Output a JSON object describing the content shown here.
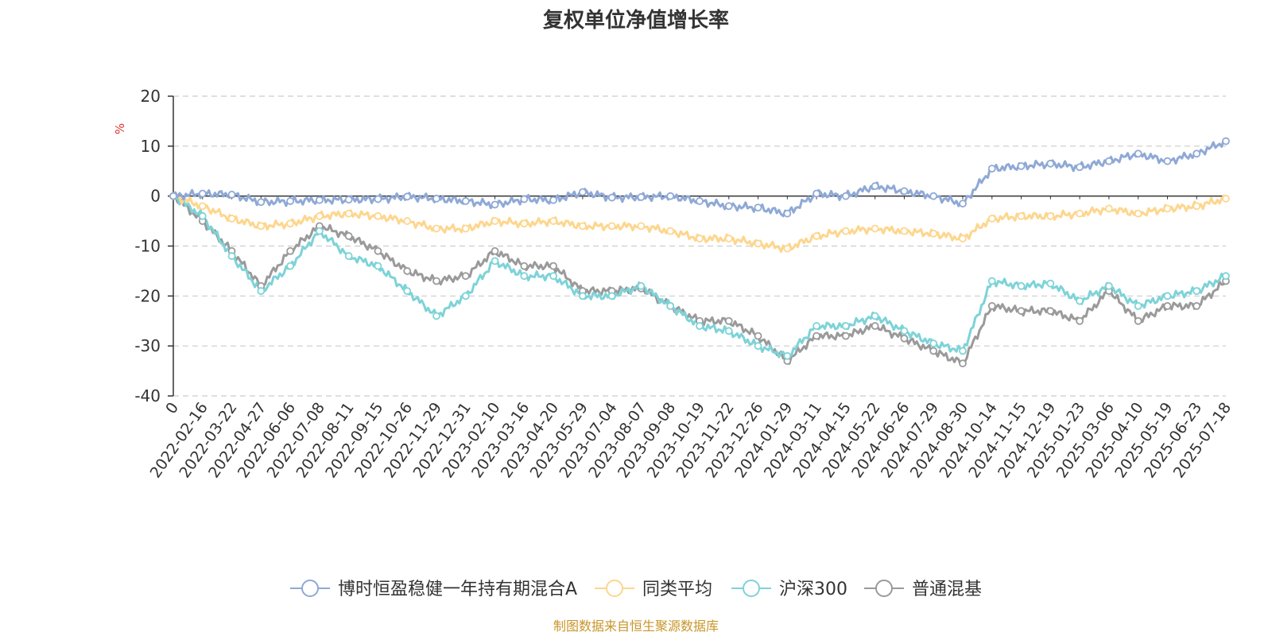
{
  "title": "复权单位净值增长率",
  "source_note": "制图数据来自恒生聚源数据库",
  "colors": {
    "series": [
      "#8fa9d6",
      "#fdd68e",
      "#7dd3d8",
      "#9a9a9a"
    ],
    "grid": "#cccccc",
    "axis": "#333333",
    "unit": "#e03030",
    "source": "#c8962a"
  },
  "chart_data": {
    "type": "line",
    "title": "复权单位净值增长率",
    "ylabel": "%",
    "ylim": [
      -40,
      20
    ],
    "yticks": [
      20,
      10,
      0,
      -10,
      -20,
      -30,
      -40
    ],
    "grid": "horizontal dashed",
    "legend_position": "bottom",
    "x_tick_labels": [
      "0",
      "2022-02-16",
      "2022-03-22",
      "2022-04-27",
      "2022-06-06",
      "2022-07-08",
      "2022-08-11",
      "2022-09-15",
      "2022-10-26",
      "2022-11-29",
      "2022-12-31",
      "2023-02-10",
      "2023-03-16",
      "2023-04-20",
      "2023-05-29",
      "2023-07-04",
      "2023-08-07",
      "2023-09-08",
      "2023-10-19",
      "2023-11-22",
      "2023-12-26",
      "2024-01-29",
      "2024-03-11",
      "2024-04-15",
      "2024-05-22",
      "2024-06-26",
      "2024-07-29",
      "2024-08-30",
      "2024-10-14",
      "2024-11-15",
      "2024-12-19",
      "2025-01-23",
      "2025-03-06",
      "2025-04-10",
      "2025-05-19",
      "2025-06-23",
      "2025-07-18"
    ],
    "series": [
      {
        "name": "博时恒盈稳健一年持有期混合A",
        "values": [
          0,
          0.5,
          0.3,
          -1.2,
          -1.0,
          -0.8,
          -0.7,
          -0.6,
          -0.1,
          -0.5,
          -1.0,
          -1.7,
          -0.6,
          -0.8,
          0.8,
          -0.3,
          -0.2,
          0,
          -1.0,
          -2.0,
          -2.3,
          -3.5,
          0.5,
          0,
          2.0,
          1.0,
          0,
          -1.5,
          5.5,
          6.0,
          6.5,
          5.8,
          7.0,
          8.5,
          7.0,
          8.5,
          11.0
        ]
      },
      {
        "name": "同类平均",
        "values": [
          0,
          -2.0,
          -4.5,
          -6.0,
          -5.5,
          -4.0,
          -3.5,
          -4.0,
          -5.0,
          -6.5,
          -6.5,
          -5.0,
          -5.5,
          -5.0,
          -6.0,
          -6.0,
          -6.0,
          -7.0,
          -8.5,
          -8.5,
          -9.5,
          -10.5,
          -8.0,
          -7.0,
          -6.5,
          -7.0,
          -7.5,
          -8.5,
          -4.5,
          -4.0,
          -4.0,
          -3.5,
          -2.5,
          -3.5,
          -2.5,
          -2.0,
          -0.5
        ]
      },
      {
        "name": "沪深300",
        "values": [
          0,
          -4.0,
          -12.0,
          -19.0,
          -14.0,
          -7.0,
          -12.0,
          -14.0,
          -19.0,
          -24.0,
          -20.0,
          -13.0,
          -16.0,
          -16.0,
          -20.0,
          -20.0,
          -18.0,
          -22.0,
          -26.0,
          -27.0,
          -30.0,
          -32.0,
          -26.0,
          -26.0,
          -24.0,
          -27.0,
          -29.5,
          -31.0,
          -17.0,
          -18.0,
          -17.5,
          -21.0,
          -18.0,
          -22.0,
          -20.0,
          -19.0,
          -16.0
        ]
      },
      {
        "name": "普通混基",
        "values": [
          0,
          -5.0,
          -11.0,
          -18.0,
          -11.0,
          -6.0,
          -8.0,
          -11.0,
          -15.0,
          -17.0,
          -16.0,
          -11.0,
          -14.0,
          -14.0,
          -19.0,
          -19.0,
          -18.5,
          -22.0,
          -25.0,
          -25.0,
          -28.0,
          -33.0,
          -28.0,
          -28.0,
          -26.0,
          -28.5,
          -31.0,
          -33.5,
          -22.0,
          -23.0,
          -23.0,
          -25.0,
          -19.0,
          -25.0,
          -22.0,
          -22.0,
          -17.0
        ]
      }
    ]
  }
}
